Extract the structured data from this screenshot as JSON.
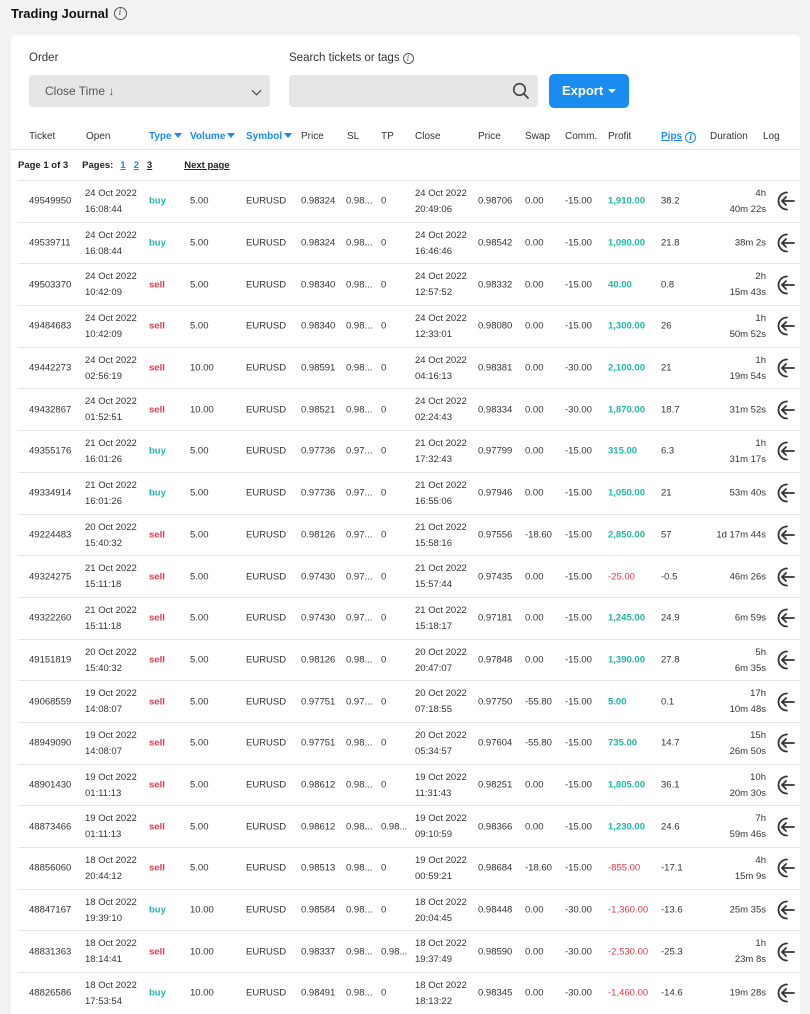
{
  "page": {
    "title": "Trading Journal"
  },
  "filters": {
    "order_label": "Order",
    "order_value": "Close Time ↓",
    "search_label": "Search tickets or tags",
    "search_value": "",
    "export_label": "Export"
  },
  "columns": {
    "ticket": "Ticket",
    "open": "Open",
    "type": "Type",
    "volume": "Volume",
    "symbol": "Symbol",
    "price": "Price",
    "sl": "SL",
    "tp": "TP",
    "close": "Close",
    "close_price": "Price",
    "swap": "Swap",
    "comm": "Comm.",
    "profit": "Profit",
    "pips": "Pips",
    "duration": "Duration",
    "log": "Log"
  },
  "pagination": {
    "page_info": "Page 1 of 3",
    "pages_label": "Pages:",
    "pages": [
      "1",
      "2",
      "3"
    ],
    "next": "Next page"
  },
  "colors": {
    "accent": "#1a8cf0",
    "buy": "#1fb8a6",
    "sell": "#e0394a"
  },
  "rows": [
    {
      "ticket": "49549950",
      "open_date": "24 Oct 2022",
      "open_time": "16:08:44",
      "type": "buy",
      "volume": "5.00",
      "symbol": "EURUSD",
      "price": "0.98324",
      "sl": "0.98...",
      "tp": "0",
      "close_date": "24 Oct 2022",
      "close_time": "20:49:06",
      "close_price": "0.98706",
      "swap": "0.00",
      "comm": "-15.00",
      "profit": "1,910.00",
      "pips": "38.2",
      "dur1": "4h",
      "dur2": "40m 22s"
    },
    {
      "ticket": "49539711",
      "open_date": "24 Oct 2022",
      "open_time": "16:08:44",
      "type": "buy",
      "volume": "5.00",
      "symbol": "EURUSD",
      "price": "0.98324",
      "sl": "0.98...",
      "tp": "0",
      "close_date": "24 Oct 2022",
      "close_time": "16:46:46",
      "close_price": "0.98542",
      "swap": "0.00",
      "comm": "-15.00",
      "profit": "1,090.00",
      "pips": "21.8",
      "dur1": "38m 2s",
      "dur2": ""
    },
    {
      "ticket": "49503370",
      "open_date": "24 Oct 2022",
      "open_time": "10:42:09",
      "type": "sell",
      "volume": "5.00",
      "symbol": "EURUSD",
      "price": "0.98340",
      "sl": "0.98...",
      "tp": "0",
      "close_date": "24 Oct 2022",
      "close_time": "12:57:52",
      "close_price": "0.98332",
      "swap": "0.00",
      "comm": "-15.00",
      "profit": "40.00",
      "pips": "0.8",
      "dur1": "2h",
      "dur2": "15m 43s"
    },
    {
      "ticket": "49484683",
      "open_date": "24 Oct 2022",
      "open_time": "10:42:09",
      "type": "sell",
      "volume": "5.00",
      "symbol": "EURUSD",
      "price": "0.98340",
      "sl": "0.98...",
      "tp": "0",
      "close_date": "24 Oct 2022",
      "close_time": "12:33:01",
      "close_price": "0.98080",
      "swap": "0.00",
      "comm": "-15.00",
      "profit": "1,300.00",
      "pips": "26",
      "dur1": "1h",
      "dur2": "50m 52s"
    },
    {
      "ticket": "49442273",
      "open_date": "24 Oct 2022",
      "open_time": "02:56:19",
      "type": "sell",
      "volume": "10.00",
      "symbol": "EURUSD",
      "price": "0.98591",
      "sl": "0.98...",
      "tp": "0",
      "close_date": "24 Oct 2022",
      "close_time": "04:16:13",
      "close_price": "0.98381",
      "swap": "0.00",
      "comm": "-30.00",
      "profit": "2,100.00",
      "pips": "21",
      "dur1": "1h",
      "dur2": "19m 54s"
    },
    {
      "ticket": "49432867",
      "open_date": "24 Oct 2022",
      "open_time": "01:52:51",
      "type": "sell",
      "volume": "10.00",
      "symbol": "EURUSD",
      "price": "0.98521",
      "sl": "0.98...",
      "tp": "0",
      "close_date": "24 Oct 2022",
      "close_time": "02:24:43",
      "close_price": "0.98334",
      "swap": "0.00",
      "comm": "-30.00",
      "profit": "1,870.00",
      "pips": "18.7",
      "dur1": "31m 52s",
      "dur2": ""
    },
    {
      "ticket": "49355176",
      "open_date": "21 Oct 2022",
      "open_time": "16:01:26",
      "type": "buy",
      "volume": "5.00",
      "symbol": "EURUSD",
      "price": "0.97736",
      "sl": "0.97...",
      "tp": "0",
      "close_date": "21 Oct 2022",
      "close_time": "17:32:43",
      "close_price": "0.97799",
      "swap": "0.00",
      "comm": "-15.00",
      "profit": "315.00",
      "pips": "6.3",
      "dur1": "1h",
      "dur2": "31m 17s"
    },
    {
      "ticket": "49334914",
      "open_date": "21 Oct 2022",
      "open_time": "16:01:26",
      "type": "buy",
      "volume": "5.00",
      "symbol": "EURUSD",
      "price": "0.97736",
      "sl": "0.97...",
      "tp": "0",
      "close_date": "21 Oct 2022",
      "close_time": "16:55:06",
      "close_price": "0.97946",
      "swap": "0.00",
      "comm": "-15.00",
      "profit": "1,050.00",
      "pips": "21",
      "dur1": "53m 40s",
      "dur2": ""
    },
    {
      "ticket": "49224483",
      "open_date": "20 Oct 2022",
      "open_time": "15:40:32",
      "type": "sell",
      "volume": "5.00",
      "symbol": "EURUSD",
      "price": "0.98126",
      "sl": "0.97...",
      "tp": "0",
      "close_date": "21 Oct 2022",
      "close_time": "15:58:16",
      "close_price": "0.97556",
      "swap": "-18.60",
      "comm": "-15.00",
      "profit": "2,850.00",
      "pips": "57",
      "dur1": "1d 17m 44s",
      "dur2": ""
    },
    {
      "ticket": "49324275",
      "open_date": "21 Oct 2022",
      "open_time": "15:11:18",
      "type": "sell",
      "volume": "5.00",
      "symbol": "EURUSD",
      "price": "0.97430",
      "sl": "0.97...",
      "tp": "0",
      "close_date": "21 Oct 2022",
      "close_time": "15:57:44",
      "close_price": "0.97435",
      "swap": "0.00",
      "comm": "-15.00",
      "profit": "-25.00",
      "pips": "-0.5",
      "dur1": "46m 26s",
      "dur2": ""
    },
    {
      "ticket": "49322260",
      "open_date": "21 Oct 2022",
      "open_time": "15:11:18",
      "type": "sell",
      "volume": "5.00",
      "symbol": "EURUSD",
      "price": "0.97430",
      "sl": "0.97...",
      "tp": "0",
      "close_date": "21 Oct 2022",
      "close_time": "15:18:17",
      "close_price": "0.97181",
      "swap": "0.00",
      "comm": "-15.00",
      "profit": "1,245.00",
      "pips": "24.9",
      "dur1": "6m 59s",
      "dur2": ""
    },
    {
      "ticket": "49151819",
      "open_date": "20 Oct 2022",
      "open_time": "15:40:32",
      "type": "sell",
      "volume": "5.00",
      "symbol": "EURUSD",
      "price": "0.98126",
      "sl": "0.98...",
      "tp": "0",
      "close_date": "20 Oct 2022",
      "close_time": "20:47:07",
      "close_price": "0.97848",
      "swap": "0.00",
      "comm": "-15.00",
      "profit": "1,390.00",
      "pips": "27.8",
      "dur1": "5h",
      "dur2": "6m 35s"
    },
    {
      "ticket": "49068559",
      "open_date": "19 Oct 2022",
      "open_time": "14:08:07",
      "type": "sell",
      "volume": "5.00",
      "symbol": "EURUSD",
      "price": "0.97751",
      "sl": "0.97...",
      "tp": "0",
      "close_date": "20 Oct 2022",
      "close_time": "07:18:55",
      "close_price": "0.97750",
      "swap": "-55.80",
      "comm": "-15.00",
      "profit": "5.00",
      "pips": "0.1",
      "dur1": "17h",
      "dur2": "10m 48s"
    },
    {
      "ticket": "48949090",
      "open_date": "19 Oct 2022",
      "open_time": "14:08:07",
      "type": "sell",
      "volume": "5.00",
      "symbol": "EURUSD",
      "price": "0.97751",
      "sl": "0.98...",
      "tp": "0",
      "close_date": "20 Oct 2022",
      "close_time": "05:34:57",
      "close_price": "0.97604",
      "swap": "-55.80",
      "comm": "-15.00",
      "profit": "735.00",
      "pips": "14.7",
      "dur1": "15h",
      "dur2": "26m 50s"
    },
    {
      "ticket": "48901430",
      "open_date": "19 Oct 2022",
      "open_time": "01:11:13",
      "type": "sell",
      "volume": "5.00",
      "symbol": "EURUSD",
      "price": "0.98612",
      "sl": "0.98...",
      "tp": "0",
      "close_date": "19 Oct 2022",
      "close_time": "11:31:43",
      "close_price": "0.98251",
      "swap": "0.00",
      "comm": "-15.00",
      "profit": "1,805.00",
      "pips": "36.1",
      "dur1": "10h",
      "dur2": "20m 30s"
    },
    {
      "ticket": "48873466",
      "open_date": "19 Oct 2022",
      "open_time": "01:11:13",
      "type": "sell",
      "volume": "5.00",
      "symbol": "EURUSD",
      "price": "0.98612",
      "sl": "0.98...",
      "tp": "0.98...",
      "close_date": "19 Oct 2022",
      "close_time": "09:10:59",
      "close_price": "0.98366",
      "swap": "0.00",
      "comm": "-15.00",
      "profit": "1,230.00",
      "pips": "24.6",
      "dur1": "7h",
      "dur2": "59m 46s"
    },
    {
      "ticket": "48856060",
      "open_date": "18 Oct 2022",
      "open_time": "20:44:12",
      "type": "sell",
      "volume": "5.00",
      "symbol": "EURUSD",
      "price": "0.98513",
      "sl": "0.98...",
      "tp": "0",
      "close_date": "19 Oct 2022",
      "close_time": "00:59:21",
      "close_price": "0.98684",
      "swap": "-18.60",
      "comm": "-15.00",
      "profit": "-855.00",
      "pips": "-17.1",
      "dur1": "4h",
      "dur2": "15m 9s"
    },
    {
      "ticket": "48847167",
      "open_date": "18 Oct 2022",
      "open_time": "19:39:10",
      "type": "buy",
      "volume": "10.00",
      "symbol": "EURUSD",
      "price": "0.98584",
      "sl": "0.98...",
      "tp": "0",
      "close_date": "18 Oct 2022",
      "close_time": "20:04:45",
      "close_price": "0.98448",
      "swap": "0.00",
      "comm": "-30.00",
      "profit": "-1,360.00",
      "pips": "-13.6",
      "dur1": "25m 35s",
      "dur2": ""
    },
    {
      "ticket": "48831363",
      "open_date": "18 Oct 2022",
      "open_time": "18:14:41",
      "type": "sell",
      "volume": "10.00",
      "symbol": "EURUSD",
      "price": "0.98337",
      "sl": "0.98...",
      "tp": "0.98...",
      "close_date": "18 Oct 2022",
      "close_time": "19:37:49",
      "close_price": "0.98590",
      "swap": "0.00",
      "comm": "-30.00",
      "profit": "-2,530.00",
      "pips": "-25.3",
      "dur1": "1h",
      "dur2": "23m 8s"
    },
    {
      "ticket": "48826586",
      "open_date": "18 Oct 2022",
      "open_time": "17:53:54",
      "type": "buy",
      "volume": "10.00",
      "symbol": "EURUSD",
      "price": "0.98491",
      "sl": "0.98...",
      "tp": "0",
      "close_date": "18 Oct 2022",
      "close_time": "18:13:22",
      "close_price": "0.98345",
      "swap": "0.00",
      "comm": "-30.00",
      "profit": "-1,460.00",
      "pips": "-14.6",
      "dur1": "19m 28s",
      "dur2": ""
    }
  ]
}
